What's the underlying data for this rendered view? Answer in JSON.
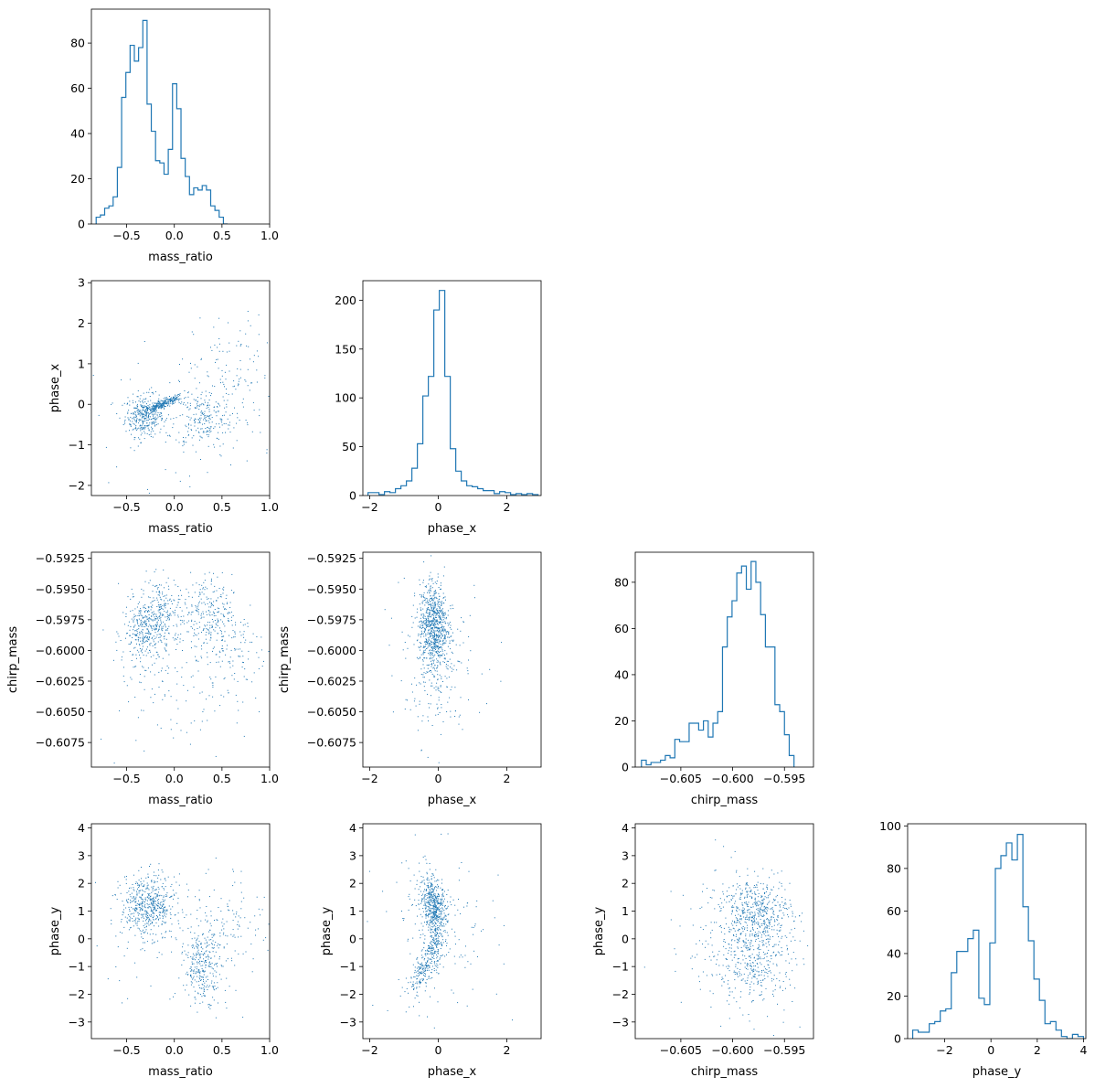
{
  "chart_data": [
    {
      "type": "histogram",
      "panel": "mass_ratio-hist",
      "xlabel": "mass_ratio",
      "ylabel": "",
      "xlim": [
        -0.87,
        1.0
      ],
      "ylim": [
        0,
        95
      ],
      "xticks": [
        -0.5,
        0.0,
        0.5,
        1.0
      ],
      "xtick_labels": [
        "−0.5",
        "0.0",
        "0.5",
        "1.0"
      ],
      "yticks": [
        0,
        20,
        40,
        60,
        80
      ],
      "ytick_labels": [
        "0",
        "20",
        "40",
        "60",
        "80"
      ],
      "bin_start": -0.82,
      "bin_width": 0.0445,
      "counts": [
        3,
        4,
        7,
        8,
        12,
        25,
        56,
        67,
        79,
        72,
        78,
        90,
        53,
        41,
        28,
        27,
        22,
        33,
        62,
        51,
        29,
        21,
        13,
        16,
        15,
        17,
        15,
        8,
        6,
        3,
        0
      ]
    },
    {
      "type": "scatter",
      "panel": "mass_ratio-phase_x",
      "xlabel": "mass_ratio",
      "ylabel": "phase_x",
      "xlim": [
        -0.87,
        1.0
      ],
      "ylim": [
        -2.25,
        3.05
      ],
      "xticks": [
        -0.5,
        0.0,
        0.5,
        1.0
      ],
      "xtick_labels": [
        "−0.5",
        "0.0",
        "0.5",
        "1.0"
      ],
      "yticks": [
        -2,
        -1,
        0,
        1,
        2,
        3
      ],
      "ytick_labels": [
        "−2",
        "−1",
        "0",
        "1",
        "2",
        "3"
      ],
      "clusters": [
        {
          "n": 320,
          "cx": -0.32,
          "cy": -0.28,
          "sx": 0.1,
          "sy": 0.25
        },
        {
          "n": 260,
          "cx": -0.12,
          "cy": 0.02,
          "sx": 0.11,
          "sy": 0.12,
          "corr": 0.9
        },
        {
          "n": 200,
          "cx": 0.3,
          "cy": -0.35,
          "sx": 0.15,
          "sy": 0.35
        },
        {
          "n": 110,
          "cx": 0.6,
          "cy": 0.7,
          "sx": 0.2,
          "sy": 0.75
        },
        {
          "n": 110,
          "cx": 0.0,
          "cy": -0.3,
          "sx": 0.45,
          "sy": 0.85
        }
      ]
    },
    {
      "type": "histogram",
      "panel": "phase_x-hist",
      "xlabel": "phase_x",
      "ylabel": "",
      "xlim": [
        -2.2,
        3.0
      ],
      "ylim": [
        0,
        220
      ],
      "xticks": [
        -2,
        0,
        2
      ],
      "xtick_labels": [
        "−2",
        "0",
        "2"
      ],
      "yticks": [
        0,
        50,
        100,
        150,
        200
      ],
      "ytick_labels": [
        "0",
        "50",
        "100",
        "150",
        "200"
      ],
      "bin_start": -2.05,
      "bin_width": 0.16,
      "counts": [
        3,
        3,
        1,
        4,
        3,
        7,
        10,
        15,
        28,
        53,
        102,
        122,
        190,
        210,
        122,
        48,
        25,
        15,
        10,
        9,
        7,
        5,
        5,
        2,
        4,
        3,
        1,
        2,
        1,
        2,
        1
      ]
    },
    {
      "type": "scatter",
      "panel": "mass_ratio-chirp_mass",
      "xlabel": "mass_ratio",
      "ylabel": "chirp_mass",
      "xlim": [
        -0.87,
        1.0
      ],
      "ylim": [
        -0.6095,
        -0.592
      ],
      "xticks": [
        -0.5,
        0.0,
        0.5,
        1.0
      ],
      "xtick_labels": [
        "−0.5",
        "0.0",
        "0.5",
        "1.0"
      ],
      "yticks": [
        -0.6075,
        -0.605,
        -0.6025,
        -0.6,
        -0.5975,
        -0.595,
        -0.5925
      ],
      "ytick_labels": [
        "−0.6075",
        "−0.6050",
        "−0.6025",
        "−0.6000",
        "−0.5975",
        "−0.5950",
        "−0.5925"
      ],
      "clusters": [
        {
          "n": 330,
          "cx": -0.3,
          "cy": -0.5985,
          "sx": 0.12,
          "sy": 0.0013
        },
        {
          "n": 160,
          "cx": -0.15,
          "cy": -0.5965,
          "sx": 0.1,
          "sy": 0.0012
        },
        {
          "n": 230,
          "cx": 0.3,
          "cy": -0.597,
          "sx": 0.15,
          "sy": 0.0016
        },
        {
          "n": 130,
          "cx": 0.6,
          "cy": -0.5995,
          "sx": 0.18,
          "sy": 0.0025
        },
        {
          "n": 150,
          "cx": 0.0,
          "cy": -0.6015,
          "sx": 0.42,
          "sy": 0.0032
        }
      ]
    },
    {
      "type": "scatter",
      "panel": "phase_x-chirp_mass",
      "xlabel": "phase_x",
      "ylabel": "chirp_mass",
      "xlim": [
        -2.2,
        3.0
      ],
      "ylim": [
        -0.6095,
        -0.592
      ],
      "xticks": [
        -2,
        0,
        2
      ],
      "xtick_labels": [
        "−2",
        "0",
        "2"
      ],
      "yticks": [
        -0.6075,
        -0.605,
        -0.6025,
        -0.6,
        -0.5975,
        -0.595,
        -0.5925
      ],
      "ytick_labels": [
        "−0.6075",
        "−0.6050",
        "−0.6025",
        "−0.6000",
        "−0.5975",
        "−0.5950",
        "−0.5925"
      ],
      "clusters": [
        {
          "n": 700,
          "cx": -0.15,
          "cy": -0.5978,
          "sx": 0.2,
          "sy": 0.0017
        },
        {
          "n": 180,
          "cx": -0.1,
          "cy": -0.6015,
          "sx": 0.3,
          "sy": 0.0028
        },
        {
          "n": 120,
          "cx": -0.1,
          "cy": -0.6005,
          "sx": 0.85,
          "sy": 0.003
        }
      ]
    },
    {
      "type": "histogram",
      "panel": "chirp_mass-hist",
      "xlabel": "chirp_mass",
      "ylabel": "",
      "xlim": [
        -0.6094,
        -0.5922
      ],
      "ylim": [
        0,
        93
      ],
      "xticks": [
        -0.605,
        -0.6,
        -0.595
      ],
      "xtick_labels": [
        "−0.605",
        "−0.600",
        "−0.595"
      ],
      "yticks": [
        0,
        20,
        40,
        60,
        80
      ],
      "ytick_labels": [
        "0",
        "20",
        "40",
        "60",
        "80"
      ],
      "bin_start": -0.6088,
      "bin_width": 0.00046,
      "counts": [
        3,
        1,
        2,
        2,
        3,
        5,
        4,
        12,
        11,
        11,
        19,
        19,
        16,
        20,
        13,
        19,
        24,
        52,
        65,
        72,
        84,
        87,
        77,
        89,
        80,
        66,
        52,
        52,
        27,
        24,
        14,
        5
      ]
    },
    {
      "type": "scatter",
      "panel": "mass_ratio-phase_y",
      "xlabel": "mass_ratio",
      "ylabel": "phase_y",
      "xlim": [
        -0.87,
        1.0
      ],
      "ylim": [
        -3.6,
        4.15
      ],
      "xticks": [
        -0.5,
        0.0,
        0.5,
        1.0
      ],
      "xtick_labels": [
        "−0.5",
        "0.0",
        "0.5",
        "1.0"
      ],
      "yticks": [
        -3,
        -2,
        -1,
        0,
        1,
        2,
        3,
        4
      ],
      "ytick_labels": [
        "−3",
        "−2",
        "−1",
        "0",
        "1",
        "2",
        "3",
        "4"
      ],
      "clusters": [
        {
          "n": 520,
          "cx": -0.28,
          "cy": 1.2,
          "sx": 0.14,
          "sy": 0.55
        },
        {
          "n": 280,
          "cx": 0.3,
          "cy": -1.0,
          "sx": 0.1,
          "sy": 0.6
        },
        {
          "n": 100,
          "cx": 0.6,
          "cy": 0.8,
          "sx": 0.2,
          "sy": 0.9
        },
        {
          "n": 100,
          "cx": 0.0,
          "cy": 0.0,
          "sx": 0.45,
          "sy": 1.3
        }
      ]
    },
    {
      "type": "scatter",
      "panel": "phase_x-phase_y",
      "xlabel": "phase_x",
      "ylabel": "phase_y",
      "xlim": [
        -2.2,
        3.0
      ],
      "ylim": [
        -3.6,
        4.15
      ],
      "xticks": [
        -2,
        0,
        2
      ],
      "xtick_labels": [
        "−2",
        "0",
        "2"
      ],
      "yticks": [
        -3,
        -2,
        -1,
        0,
        1,
        2,
        3,
        4
      ],
      "ytick_labels": [
        "−3",
        "−2",
        "−1",
        "0",
        "1",
        "2",
        "3",
        "4"
      ],
      "clusters": [
        {
          "n": 520,
          "cx": -0.15,
          "cy": 1.2,
          "sx": 0.2,
          "sy": 0.55,
          "corr": -0.4
        },
        {
          "n": 220,
          "cx": -0.4,
          "cy": -1.0,
          "sx": 0.22,
          "sy": 0.5,
          "corr": 0.7
        },
        {
          "n": 100,
          "cx": -0.1,
          "cy": -0.2,
          "sx": 0.12,
          "sy": 0.5
        },
        {
          "n": 140,
          "cx": 0.0,
          "cy": 0.2,
          "sx": 0.9,
          "sy": 1.5
        }
      ]
    },
    {
      "type": "scatter",
      "panel": "chirp_mass-phase_y",
      "xlabel": "chirp_mass",
      "ylabel": "phase_y",
      "xlim": [
        -0.6094,
        -0.5922
      ],
      "ylim": [
        -3.6,
        4.15
      ],
      "xticks": [
        -0.605,
        -0.6,
        -0.595
      ],
      "xtick_labels": [
        "−0.605",
        "−0.600",
        "−0.595"
      ],
      "yticks": [
        -3,
        -2,
        -1,
        0,
        1,
        2,
        3,
        4
      ],
      "ytick_labels": [
        "−3",
        "−2",
        "−1",
        "0",
        "1",
        "2",
        "3",
        "4"
      ],
      "clusters": [
        {
          "n": 500,
          "cx": -0.5978,
          "cy": 1.0,
          "sx": 0.0017,
          "sy": 0.6
        },
        {
          "n": 320,
          "cx": -0.5978,
          "cy": -0.9,
          "sx": 0.0018,
          "sy": 0.75
        },
        {
          "n": 150,
          "cx": -0.6005,
          "cy": 0.0,
          "sx": 0.003,
          "sy": 1.4
        }
      ]
    },
    {
      "type": "histogram",
      "panel": "phase_y-hist",
      "xlabel": "phase_y",
      "ylabel": "",
      "xlim": [
        -3.6,
        4.1
      ],
      "ylim": [
        0,
        101
      ],
      "xticks": [
        -2,
        0,
        2,
        4
      ],
      "xtick_labels": [
        "−2",
        "0",
        "2",
        "4"
      ],
      "yticks": [
        0,
        20,
        40,
        60,
        80,
        100
      ],
      "ytick_labels": [
        "0",
        "20",
        "40",
        "60",
        "80",
        "100"
      ],
      "bin_start": -3.38,
      "bin_width": 0.238,
      "counts": [
        4,
        3,
        3,
        7,
        8,
        13,
        14,
        31,
        41,
        41,
        47,
        51,
        19,
        16,
        45,
        80,
        86,
        92,
        84,
        96,
        62,
        46,
        28,
        18,
        7,
        8,
        4,
        1,
        0,
        2,
        1
      ]
    }
  ]
}
